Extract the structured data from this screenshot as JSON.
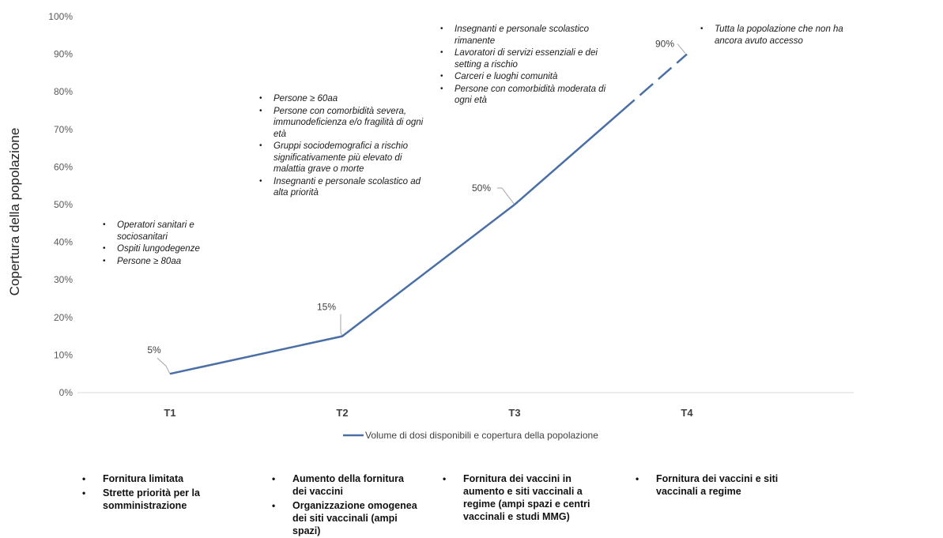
{
  "chart_data": {
    "type": "line",
    "categories": [
      "T1",
      "T2",
      "T3",
      "T4"
    ],
    "series": [
      {
        "name": "Volume di dosi disponibili e copertura della popolazione",
        "values": [
          5,
          15,
          50,
          90
        ],
        "labels": [
          "5%",
          "15%",
          "50%",
          "90%"
        ]
      }
    ],
    "ylabel": "Copertura della popolazione",
    "yticks": [
      "0%",
      "10%",
      "20%",
      "30%",
      "40%",
      "50%",
      "60%",
      "70%",
      "80%",
      "90%",
      "100%"
    ],
    "ylim": [
      0,
      100
    ],
    "grid": false,
    "legend": "bottom",
    "line_color": "#4a6fa5",
    "dashed_segment": "T3-T4 (end)"
  },
  "annotations": {
    "t1": [
      "Operatori sanitari e sociosanitari",
      "Ospiti lungodegenze",
      "Persone ≥ 80aa"
    ],
    "t2": [
      "Persone ≥ 60aa",
      "Persone con comorbidità severa, immunodeficienza e/o fragilità di ogni età",
      "Gruppi sociodemografici a rischio significativamente più elevato di malattia grave o morte",
      "Insegnanti e personale scolastico ad alta priorità"
    ],
    "t3": [
      "Insegnanti e personale scolastico rimanente",
      "Lavoratori di servizi essenziali e dei setting a rischio",
      "Carceri e luoghi comunità",
      "Persone con comorbidità moderata di ogni età"
    ],
    "t4": [
      "Tutta la popolazione che non ha ancora avuto accesso"
    ]
  },
  "supply": {
    "t1": [
      "Fornitura limitata",
      "Strette priorità per la somministrazione"
    ],
    "t2": [
      "Aumento della fornitura dei vaccini",
      "Organizzazione omogenea dei siti vaccinali (ampi spazi)"
    ],
    "t3": [
      "Fornitura dei vaccini in aumento e siti vaccinali a regime (ampi spazi e centri vaccinali e studi MMG)"
    ],
    "t4": [
      "Fornitura dei vaccini e siti vaccinali a regime"
    ]
  }
}
